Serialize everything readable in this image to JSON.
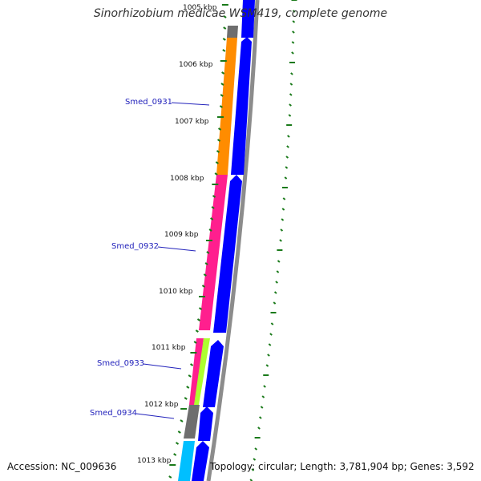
{
  "title": "Sinorhizobium medicae WSM419, complete genome",
  "footer": {
    "accession": "Accession: NC_009636",
    "summary": "Topology: circular; Length: 3,781,904 bp; Genes: 3,592"
  },
  "ticks": [
    "1005 kbp",
    "1006 kbp",
    "1007 kbp",
    "1008 kbp",
    "1009 kbp",
    "1010 kbp",
    "1011 kbp",
    "1012 kbp",
    "1013 kbp"
  ],
  "feature_labels": [
    "Smed_0931",
    "Smed_0932",
    "Smed_0933",
    "Smed_0934"
  ],
  "colors": {
    "gray": "#6e6e6e",
    "orange": "#ff8c00",
    "magenta": "#ff1f8e",
    "lime": "#adff2f",
    "cyan": "#00bfff",
    "blue": "#0000ff",
    "backbone": "#8c8c8c",
    "ticks": "#1a7a1a",
    "label_blue": "#2222bb"
  }
}
